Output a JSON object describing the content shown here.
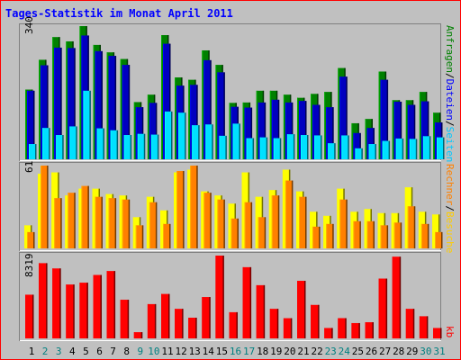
{
  "title": "Tages-Statistik im Monat April 2011",
  "colors": {
    "background": "#c0c0c0",
    "frame": "#ff0000",
    "title_text": "#0000ff",
    "hits": "#0000c0",
    "files": "#00e0ff",
    "pages_bar": "#008000",
    "visits": "#ff8000",
    "sites": "#ffff00",
    "kbytes": "#ff0000",
    "weekend_day": "#008080",
    "weekday_day": "#000000"
  },
  "chart_data": [
    {
      "type": "bar",
      "panel": "top",
      "ymax_label": "340",
      "legend": [
        "Anfragen",
        "Dateien",
        "Seiten"
      ],
      "legend_separator": "/",
      "x": [
        1,
        2,
        3,
        4,
        5,
        6,
        7,
        8,
        9,
        10,
        11,
        12,
        13,
        14,
        15,
        16,
        17,
        18,
        19,
        20,
        21,
        22,
        23,
        24,
        25,
        26,
        27,
        28,
        29,
        30,
        31
      ],
      "series": [
        {
          "name": "Anfragen",
          "values": [
            178,
            254,
            312,
            301,
            340,
            292,
            273,
            256,
            146,
            165,
            317,
            209,
            203,
            278,
            241,
            144,
            145,
            175,
            175,
            165,
            157,
            167,
            172,
            233,
            92,
            103,
            224,
            151,
            151,
            172,
            119
          ]
        },
        {
          "name": "Dateien",
          "values": [
            175,
            240,
            285,
            284,
            316,
            276,
            264,
            241,
            133,
            144,
            295,
            188,
            190,
            253,
            222,
            134,
            132,
            145,
            152,
            145,
            149,
            139,
            133,
            211,
            67,
            80,
            203,
            147,
            139,
            148,
            94
          ]
        },
        {
          "name": "Seiten",
          "values": [
            39,
            80,
            62,
            84,
            175,
            79,
            74,
            62,
            65,
            63,
            122,
            119,
            87,
            89,
            60,
            91,
            54,
            56,
            54,
            64,
            62,
            61,
            41,
            61,
            28,
            39,
            47,
            53,
            52,
            59,
            56
          ]
        }
      ]
    },
    {
      "type": "bar",
      "panel": "middle",
      "ymax_label": "61",
      "legend": [
        "Rechner",
        "Besuche"
      ],
      "legend_separator": "/",
      "x": [
        1,
        2,
        3,
        4,
        5,
        6,
        7,
        8,
        9,
        10,
        11,
        12,
        13,
        14,
        15,
        16,
        17,
        18,
        19,
        20,
        21,
        22,
        23,
        24,
        25,
        26,
        27,
        28,
        29,
        30,
        31
      ],
      "series": [
        {
          "name": "Besuche",
          "values": [
            17,
            55,
            56,
            39,
            44,
            44,
            40,
            39,
            23,
            38,
            28,
            56,
            58,
            42,
            39,
            33,
            56,
            38,
            43,
            58,
            42,
            27,
            24,
            44,
            27,
            29,
            26,
            26,
            45,
            27,
            25
          ]
        },
        {
          "name": "Rechner",
          "values": [
            12,
            61,
            37,
            41,
            46,
            38,
            37,
            36,
            17,
            34,
            18,
            57,
            61,
            41,
            36,
            22,
            34,
            23,
            39,
            50,
            38,
            16,
            18,
            36,
            20,
            20,
            17,
            19,
            31,
            18,
            12
          ]
        }
      ]
    },
    {
      "type": "bar",
      "panel": "bottom",
      "ymax_label": "8319",
      "legend": [
        "kb"
      ],
      "x": [
        1,
        2,
        3,
        4,
        5,
        6,
        7,
        8,
        9,
        10,
        11,
        12,
        13,
        14,
        15,
        16,
        17,
        18,
        19,
        20,
        21,
        22,
        23,
        24,
        25,
        26,
        27,
        28,
        29,
        30,
        31
      ],
      "series": [
        {
          "name": "kb",
          "values": [
            4390,
            7560,
            7030,
            5415,
            5600,
            6375,
            6770,
            3885,
            625,
            3445,
            4465,
            2970,
            2080,
            4155,
            8319,
            2630,
            7155,
            5345,
            2970,
            2030,
            5785,
            3365,
            1045,
            2035,
            1540,
            1625,
            6010,
            8209,
            2970,
            2225,
            1045
          ]
        }
      ]
    }
  ],
  "weekend_days": [
    2,
    3,
    9,
    10,
    16,
    17,
    23,
    24,
    30,
    31
  ]
}
